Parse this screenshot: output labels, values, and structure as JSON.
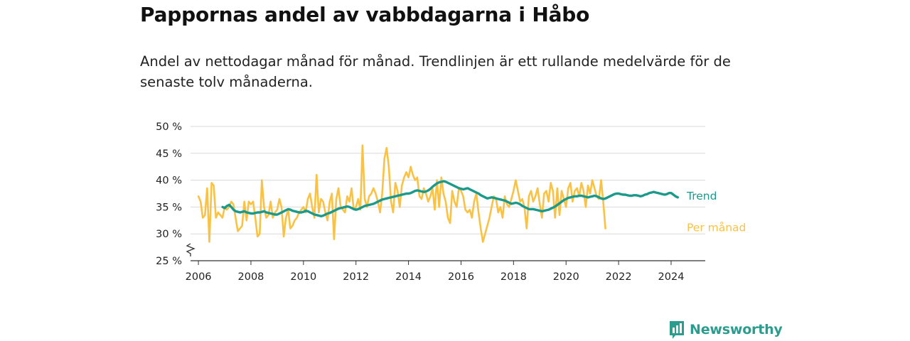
{
  "header": {
    "title": "Pappornas andel av vabbdagarna i Håbo",
    "subtitle": "Andel av nettodagar månad för månad. Trendlinjen är ett rullande medelvärde för de senaste tolv månaderna."
  },
  "brand": {
    "name": "Newsworthy",
    "icon": "newsworthy-logo-icon"
  },
  "colors": {
    "monthly": "#f9c244",
    "trend": "#1b9a8c",
    "grid": "#d9d9d9",
    "axis": "#333333"
  },
  "chart_data": {
    "type": "line",
    "title": "Pappornas andel av vabbdagarna i Håbo",
    "xlabel": "",
    "ylabel": "",
    "y_ticks": [
      25,
      30,
      35,
      40,
      45,
      50
    ],
    "y_tick_labels": [
      "25 %",
      "30 %",
      "35 %",
      "40 %",
      "45 %",
      "50 %"
    ],
    "ylim": [
      25,
      50
    ],
    "x_ticks": [
      2006,
      2008,
      2010,
      2012,
      2014,
      2016,
      2018,
      2020,
      2022,
      2024
    ],
    "x_tick_labels": [
      "2006",
      "2008",
      "2010",
      "2012",
      "2014",
      "2016",
      "2018",
      "2020",
      "2022",
      "2024"
    ],
    "xlim": [
      2005.7,
      2025.3
    ],
    "axis_break": true,
    "series": [
      {
        "name": "Per månad",
        "start": 2006.0,
        "step": 0.08333,
        "values": [
          37.0,
          36.0,
          33.0,
          33.5,
          38.5,
          28.5,
          39.5,
          39.0,
          33.0,
          34.0,
          33.5,
          33.0,
          35.0,
          34.5,
          35.0,
          36.0,
          35.5,
          33.0,
          30.5,
          31.0,
          31.5,
          36.0,
          32.5,
          36.0,
          35.5,
          36.0,
          33.0,
          29.5,
          30.0,
          40.0,
          35.0,
          33.0,
          33.5,
          36.0,
          33.0,
          34.0,
          34.5,
          36.5,
          35.0,
          29.5,
          33.0,
          34.5,
          31.0,
          31.5,
          32.5,
          33.0,
          34.0,
          34.5,
          35.0,
          34.0,
          36.5,
          37.5,
          35.0,
          33.0,
          41.0,
          34.0,
          36.5,
          36.0,
          34.0,
          32.5,
          36.0,
          37.5,
          29.0,
          36.5,
          38.5,
          35.0,
          34.5,
          34.0,
          37.0,
          36.0,
          38.5,
          34.5,
          35.0,
          36.5,
          34.5,
          46.5,
          36.5,
          35.0,
          37.0,
          37.5,
          38.5,
          37.5,
          36.0,
          34.0,
          37.5,
          44.0,
          46.0,
          42.5,
          36.0,
          34.0,
          39.5,
          38.0,
          35.0,
          39.0,
          40.5,
          41.5,
          40.5,
          42.5,
          41.0,
          40.0,
          40.5,
          37.0,
          36.5,
          38.5,
          37.5,
          36.0,
          37.0,
          38.5,
          34.5,
          40.0,
          35.0,
          40.5,
          37.5,
          36.0,
          33.0,
          32.0,
          38.0,
          36.0,
          35.0,
          38.5,
          38.0,
          37.0,
          34.5,
          34.0,
          34.5,
          33.0,
          36.0,
          37.5,
          34.0,
          31.0,
          28.5,
          30.0,
          31.5,
          33.0,
          35.0,
          37.0,
          36.5,
          34.0,
          35.0,
          33.0,
          37.0,
          35.5,
          35.0,
          36.5,
          38.0,
          40.0,
          38.0,
          36.0,
          36.5,
          35.0,
          31.0,
          37.0,
          38.0,
          36.0,
          37.0,
          38.5,
          35.5,
          33.0,
          37.5,
          38.0,
          36.0,
          39.5,
          38.0,
          33.0,
          38.5,
          33.5,
          38.0,
          36.5,
          35.0,
          38.5,
          39.5,
          36.0,
          38.0,
          38.5,
          37.0,
          39.5,
          38.0,
          35.0,
          39.0,
          37.5,
          40.0,
          38.5,
          37.0,
          36.5,
          40.0,
          36.0,
          31.0
        ]
      },
      {
        "name": "Trend",
        "start": 2006.92,
        "step": 0.08333,
        "values": [
          35.0,
          34.8,
          35.2,
          35.4,
          35.0,
          34.5,
          34.2,
          34.1,
          34.0,
          34.1,
          34.2,
          34.0,
          33.9,
          33.8,
          33.8,
          33.9,
          34.0,
          34.0,
          34.1,
          34.2,
          34.0,
          33.9,
          33.8,
          33.7,
          33.6,
          33.6,
          33.8,
          34.0,
          34.2,
          34.4,
          34.6,
          34.5,
          34.3,
          34.2,
          34.1,
          34.0,
          34.0,
          34.1,
          34.3,
          34.2,
          34.0,
          33.8,
          33.6,
          33.5,
          33.4,
          33.3,
          33.4,
          33.6,
          33.8,
          33.9,
          34.1,
          34.3,
          34.5,
          34.7,
          34.8,
          34.9,
          35.0,
          35.1,
          35.0,
          34.8,
          34.6,
          34.5,
          34.6,
          34.8,
          35.0,
          35.2,
          35.3,
          35.4,
          35.5,
          35.6,
          35.8,
          36.0,
          36.2,
          36.4,
          36.5,
          36.6,
          36.7,
          36.8,
          36.9,
          37.0,
          37.1,
          37.2,
          37.3,
          37.4,
          37.5,
          37.5,
          37.6,
          37.8,
          38.0,
          38.1,
          38.0,
          37.9,
          37.8,
          37.9,
          38.1,
          38.4,
          38.8,
          39.1,
          39.4,
          39.6,
          39.7,
          39.8,
          39.7,
          39.5,
          39.3,
          39.1,
          38.9,
          38.7,
          38.5,
          38.4,
          38.3,
          38.4,
          38.5,
          38.3,
          38.1,
          37.9,
          37.7,
          37.5,
          37.2,
          37.0,
          36.8,
          36.6,
          36.7,
          36.8,
          36.7,
          36.6,
          36.5,
          36.4,
          36.3,
          36.2,
          36.0,
          35.8,
          35.6,
          35.7,
          35.8,
          35.7,
          35.5,
          35.2,
          35.0,
          34.8,
          34.6,
          34.6,
          34.6,
          34.5,
          34.4,
          34.3,
          34.2,
          34.3,
          34.4,
          34.5,
          34.7,
          34.9,
          35.1,
          35.4,
          35.7,
          36.0,
          36.3,
          36.5,
          36.7,
          36.8,
          36.9,
          37.0,
          37.0,
          37.1,
          37.1,
          37.0,
          36.9,
          36.8,
          36.9,
          37.0,
          37.1,
          37.0,
          36.8,
          36.6,
          36.5,
          36.6,
          36.8,
          37.0,
          37.2,
          37.4,
          37.5,
          37.5,
          37.4,
          37.3,
          37.3,
          37.2,
          37.1,
          37.1,
          37.2,
          37.2,
          37.1,
          37.0,
          37.1,
          37.3,
          37.4,
          37.6,
          37.7,
          37.8,
          37.7,
          37.6,
          37.5,
          37.4,
          37.3,
          37.4,
          37.6,
          37.6,
          37.3,
          37.0,
          36.8
        ]
      }
    ]
  }
}
